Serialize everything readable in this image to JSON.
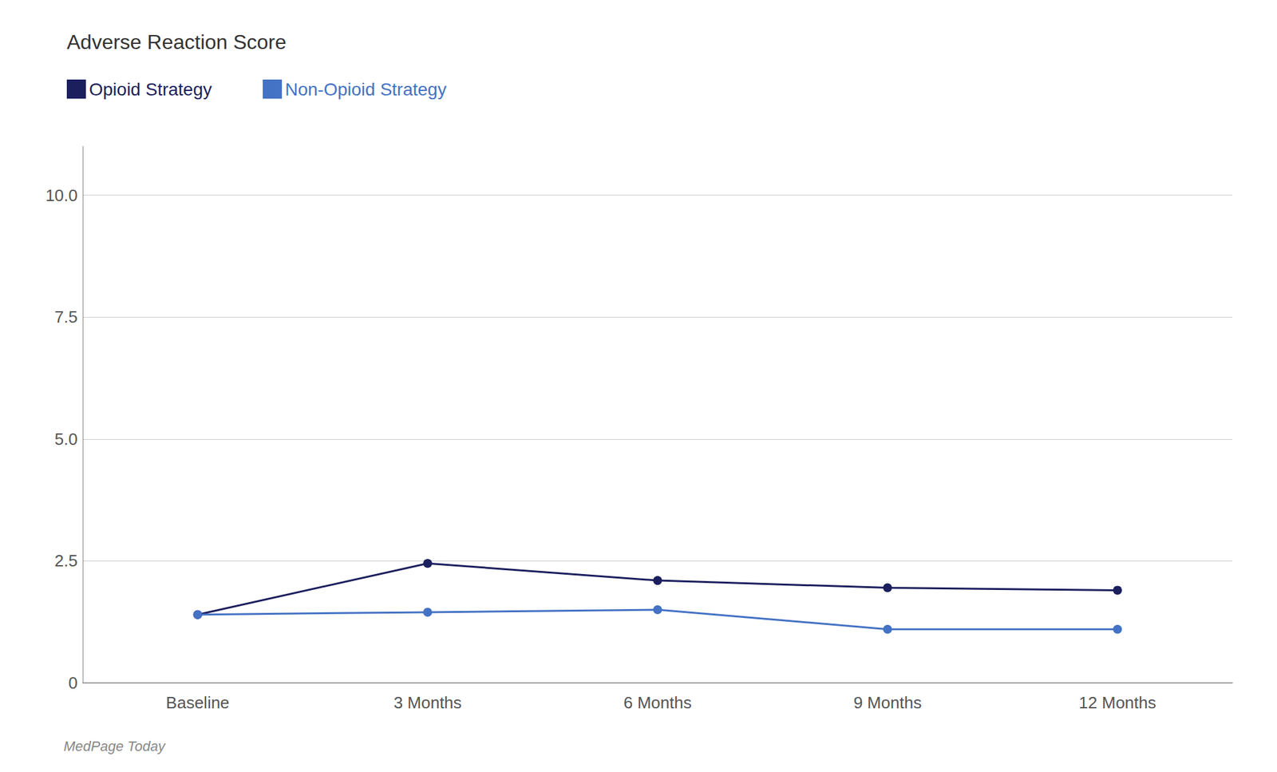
{
  "chart_data": {
    "type": "line",
    "title": "Adverse Reaction Score",
    "categories": [
      "Baseline",
      "3 Months",
      "6 Months",
      "9 Months",
      "12 Months"
    ],
    "series": [
      {
        "name": "Opioid Strategy",
        "color": "#1b1f5e",
        "marker": "circle",
        "values": [
          1.4,
          2.45,
          2.1,
          1.95,
          1.9
        ]
      },
      {
        "name": "Non-Opioid Strategy",
        "color": "#4472c4",
        "marker": "circle",
        "values": [
          1.4,
          1.45,
          1.5,
          1.1,
          1.1
        ]
      }
    ],
    "ylim": [
      0,
      11.0
    ],
    "yticks": [
      0,
      2.5,
      {
        "value": 5.0,
        "label": "5.0"
      },
      7.5,
      {
        "value": 10.0,
        "label": "10.0"
      }
    ],
    "grid": true,
    "legend": "upper left",
    "annotations": [
      "MedPage Today"
    ]
  }
}
